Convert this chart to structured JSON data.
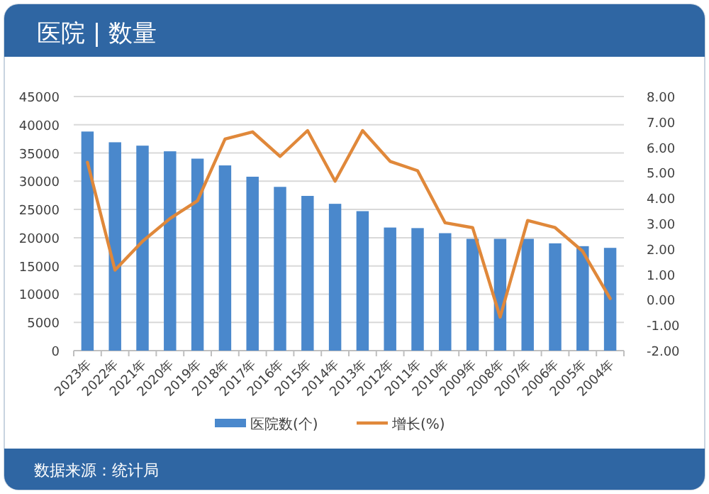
{
  "chart_data": {
    "type": "bar",
    "title": "医院 | 数量",
    "categories": [
      "2023年",
      "2022年",
      "2021年",
      "2020年",
      "2019年",
      "2018年",
      "2017年",
      "2016年",
      "2015年",
      "2014年",
      "2013年",
      "2012年",
      "2011年",
      "2010年",
      "2009年",
      "2008年",
      "2007年",
      "2006年",
      "2005年",
      "2004年"
    ],
    "series": [
      {
        "name": "医院数(个)",
        "type": "bar",
        "color": "#4a88cc",
        "values": [
          38800,
          36900,
          36300,
          35300,
          34000,
          32800,
          30800,
          29000,
          27400,
          26000,
          24700,
          21800,
          21700,
          20800,
          19800,
          19800,
          19800,
          19000,
          18500,
          18200
        ]
      },
      {
        "name": "增长(%)",
        "type": "line",
        "axis": "y2",
        "color": "#e0883a",
        "values": [
          5.41,
          1.17,
          2.3,
          3.2,
          3.9,
          6.33,
          6.61,
          5.64,
          6.66,
          4.67,
          6.66,
          5.45,
          5.08,
          3.03,
          2.84,
          -0.68,
          3.12,
          2.84,
          1.91,
          0.05
        ]
      }
    ],
    "ylim": [
      0,
      45000
    ],
    "yticks": [
      0,
      5000,
      10000,
      15000,
      20000,
      25000,
      30000,
      35000,
      40000,
      45000
    ],
    "y2lim": [
      -2,
      8
    ],
    "y2ticks": [
      {
        "value": -2,
        "label": "-2.00"
      },
      {
        "value": -1,
        "label": "-1.00"
      },
      {
        "value": 0,
        "label": "0.00"
      },
      {
        "value": 1,
        "label": "1.00"
      },
      {
        "value": 2,
        "label": "2.00"
      },
      {
        "value": 3,
        "label": "3.00"
      },
      {
        "value": 4,
        "label": "4.00"
      },
      {
        "value": 5,
        "label": "5.00"
      },
      {
        "value": 6,
        "label": "6.00"
      },
      {
        "value": 7,
        "label": "7.00"
      },
      {
        "value": 8,
        "label": "8.00"
      }
    ],
    "grid": "y",
    "legend": "bottom",
    "marker": "none",
    "annotations": [
      "数据来源：统计局"
    ]
  }
}
